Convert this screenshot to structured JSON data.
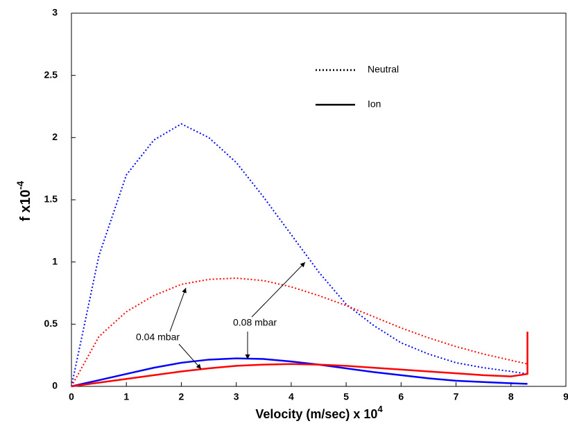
{
  "chart_data": {
    "type": "line",
    "ylabel": {
      "text": "f x10",
      "exponent": "-4"
    },
    "xlabel": {
      "text": "Velocity (m/sec) x 10",
      "exponent": "4"
    },
    "xlim": [
      0,
      9
    ],
    "ylim": [
      0,
      3
    ],
    "xticks": [
      0,
      1,
      2,
      3,
      4,
      5,
      6,
      7,
      8,
      9
    ],
    "yticks": [
      0,
      0.5,
      1,
      1.5,
      2,
      2.5,
      3
    ],
    "grid": false,
    "legend": [
      {
        "label": "Neutral",
        "dash": "dotted"
      },
      {
        "label": "Ion",
        "dash": "solid"
      }
    ],
    "annotations": [
      "0.04 mbar",
      "0.08 mbar"
    ],
    "series": [
      {
        "color": "#0000ff",
        "dash": "dotted",
        "x": [
          0,
          0.5,
          1,
          1.5,
          2,
          2.5,
          3,
          3.5,
          4,
          4.5,
          5,
          5.5,
          6,
          6.5,
          7,
          7.5,
          8,
          8.3
        ],
        "values": [
          0,
          1.05,
          1.7,
          1.98,
          2.11,
          2.0,
          1.8,
          1.52,
          1.22,
          0.92,
          0.66,
          0.49,
          0.35,
          0.26,
          0.19,
          0.15,
          0.12,
          0.1
        ]
      },
      {
        "color": "#ff0000",
        "dash": "dotted",
        "x": [
          0,
          0.5,
          1,
          1.5,
          2,
          2.5,
          3,
          3.5,
          4,
          4.5,
          5,
          5.5,
          6,
          6.5,
          7,
          7.5,
          8,
          8.3
        ],
        "values": [
          0,
          0.4,
          0.6,
          0.73,
          0.82,
          0.86,
          0.87,
          0.85,
          0.8,
          0.73,
          0.65,
          0.56,
          0.47,
          0.39,
          0.32,
          0.26,
          0.21,
          0.18
        ]
      },
      {
        "color": "#0000ff",
        "dash": "solid",
        "x": [
          0,
          0.5,
          1,
          1.5,
          2,
          2.5,
          3,
          3.5,
          4,
          4.5,
          5,
          5.5,
          6,
          6.5,
          7,
          7.5,
          8,
          8.3
        ],
        "values": [
          0,
          0.05,
          0.1,
          0.15,
          0.19,
          0.215,
          0.225,
          0.22,
          0.2,
          0.175,
          0.145,
          0.115,
          0.09,
          0.065,
          0.045,
          0.035,
          0.025,
          0.02
        ]
      },
      {
        "color": "#ff0000",
        "dash": "solid",
        "x": [
          0,
          0.5,
          1,
          1.5,
          2,
          2.5,
          3,
          3.5,
          4,
          4.5,
          5,
          5.5,
          6,
          6.5,
          7,
          7.5,
          8,
          8.3,
          8.3
        ],
        "values": [
          0,
          0.03,
          0.06,
          0.09,
          0.12,
          0.145,
          0.165,
          0.175,
          0.18,
          0.175,
          0.165,
          0.15,
          0.135,
          0.12,
          0.105,
          0.09,
          0.08,
          0.1,
          0.44
        ]
      }
    ]
  }
}
